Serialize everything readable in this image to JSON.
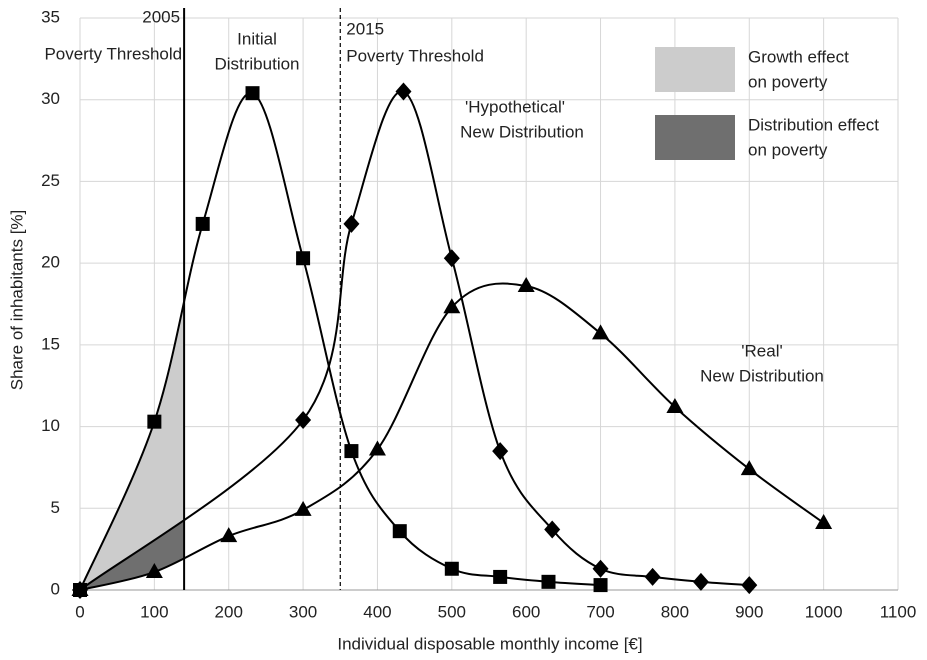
{
  "chart_data": {
    "type": "line",
    "xlabel": "Individual  disposable monthly  income [€]",
    "ylabel": "Share of inhabitants [%]",
    "xlim": [
      0,
      1100
    ],
    "ylim": [
      0,
      35
    ],
    "xticks": [
      0,
      100,
      200,
      300,
      400,
      500,
      600,
      700,
      800,
      900,
      1000,
      1100
    ],
    "yticks": [
      0,
      5,
      10,
      15,
      20,
      25,
      30,
      35
    ],
    "grid": true,
    "series": [
      {
        "label": [
          "Initial",
          "Distribution"
        ],
        "marker": "square",
        "color": "#000000",
        "x": [
          0,
          100,
          165,
          232,
          300,
          365,
          430,
          500,
          565,
          630,
          700
        ],
        "values": [
          0,
          10.3,
          22.4,
          30.4,
          20.3,
          8.5,
          3.6,
          1.3,
          0.8,
          0.5,
          0.3
        ]
      },
      {
        "label": [
          "'Hypothetical'",
          "New Distribution"
        ],
        "marker": "diamond",
        "color": "#000000",
        "x": [
          0,
          300,
          365,
          435,
          500,
          565,
          635,
          700,
          770,
          835,
          900
        ],
        "values": [
          0,
          10.4,
          22.4,
          30.5,
          20.3,
          8.5,
          3.7,
          1.3,
          0.8,
          0.5,
          0.3
        ]
      },
      {
        "label": [
          "'Real'",
          "New Distribution"
        ],
        "marker": "triangle",
        "color": "#000000",
        "x": [
          0,
          100,
          200,
          300,
          400,
          500,
          600,
          700,
          800,
          900,
          1000
        ],
        "values": [
          0,
          1.1,
          3.3,
          4.9,
          8.6,
          17.3,
          18.6,
          15.7,
          11.2,
          7.4,
          4.1
        ]
      }
    ],
    "thresholds": [
      {
        "value": 140,
        "label": [
          "2005",
          "Poverty  Threshold"
        ],
        "style": "solid"
      },
      {
        "value": 350,
        "label": [
          "2015",
          "Poverty  Threshold"
        ],
        "style": "dashed"
      }
    ],
    "areas": [
      {
        "label": [
          "Growth effect",
          "on poverty"
        ],
        "color": "#cccccc",
        "between": [
          0,
          1
        ]
      },
      {
        "label": [
          "Distribution effect",
          "on poverty"
        ],
        "color": "#6f6f6f",
        "between": [
          1,
          2
        ]
      }
    ]
  }
}
